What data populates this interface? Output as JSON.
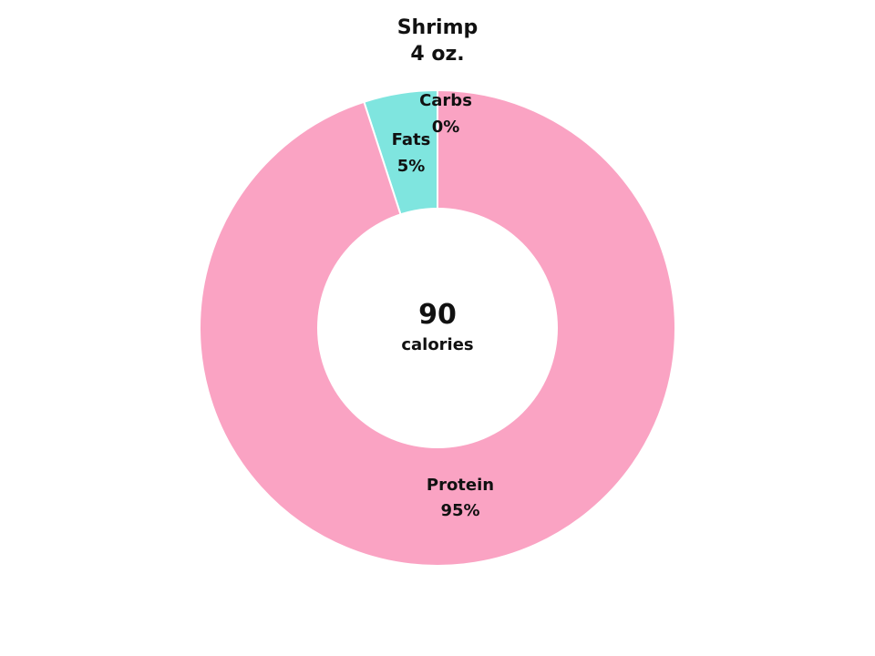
{
  "chart_data": {
    "type": "pie",
    "variant": "donut",
    "title_line1": "Shrimp",
    "title_line2": "4 oz.",
    "center_value": "90",
    "center_unit": "calories",
    "slices": [
      {
        "name": "Carbs",
        "value": 0,
        "pct_label": "0%",
        "color": "#7fe5df"
      },
      {
        "name": "Fats",
        "value": 5,
        "pct_label": "5%",
        "color": "#7fe5df"
      },
      {
        "name": "Protein",
        "value": 95,
        "pct_label": "95%",
        "color": "#faa3c3"
      }
    ]
  }
}
